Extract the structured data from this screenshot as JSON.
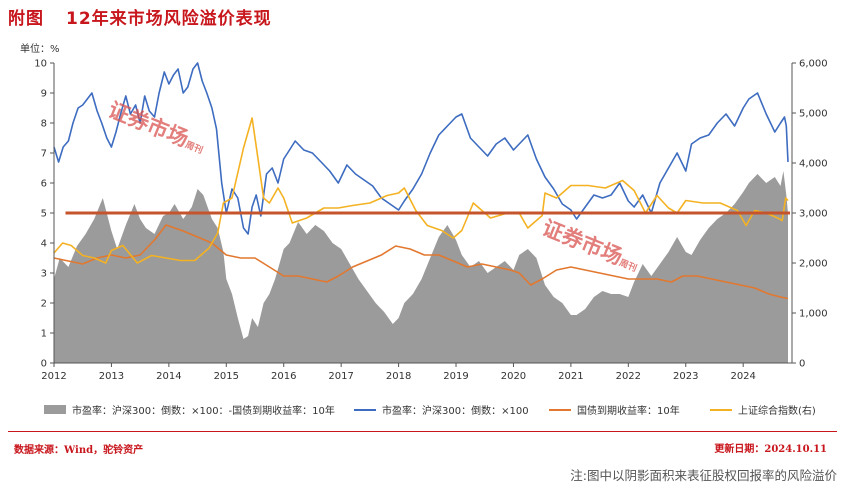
{
  "header": {
    "label": "附图",
    "title": "12年来市场风险溢价表现"
  },
  "footer": {
    "source": "数据来源：Wind，驼铃资产",
    "updated": "更新日期：2024.10.11",
    "note": "注:图中以阴影面积来表征股权回报率的风险溢价"
  },
  "watermark": {
    "text": "证券市场",
    "suffix": "周刊"
  },
  "colors": {
    "area": "#9b9b9b",
    "pe": "#3d6cc0",
    "bond": "#e2782f",
    "sh": "#f4b223",
    "ref": "#c5532b",
    "accent": "#c8161d"
  },
  "chart_data": {
    "type": "line",
    "unit_label": "单位：%",
    "x_ticks": [
      "2012",
      "2013",
      "2014",
      "2015",
      "2016",
      "2017",
      "2018",
      "2019",
      "2020",
      "2021",
      "2022",
      "2023",
      "2024"
    ],
    "xlim": [
      2012,
      2024.85
    ],
    "ylim_left": [
      0,
      10
    ],
    "y_ticks_left": [
      "0",
      "1",
      "2",
      "3",
      "4",
      "5",
      "6",
      "7",
      "8",
      "9",
      "10"
    ],
    "ylim_right": [
      0,
      6000
    ],
    "y_ticks_right": [
      "0",
      "1,000",
      "2,000",
      "3,000",
      "4,000",
      "5,000",
      "6,000"
    ],
    "reference_line": 5.0,
    "series": [
      {
        "name": "市盈率：沪深300：倒数：×100：-国债到期收益率：10年",
        "kind": "area",
        "axis": "left",
        "x": [
          2012.0,
          2012.1,
          2012.25,
          2012.4,
          2012.55,
          2012.7,
          2012.85,
          2013.0,
          2013.1,
          2013.25,
          2013.4,
          2013.5,
          2013.6,
          2013.75,
          2013.9,
          2014.0,
          2014.1,
          2014.25,
          2014.4,
          2014.5,
          2014.6,
          2014.75,
          2014.85,
          2014.95,
          2015.0,
          2015.1,
          2015.2,
          2015.3,
          2015.38,
          2015.45,
          2015.55,
          2015.65,
          2015.75,
          2015.85,
          2016.0,
          2016.1,
          2016.25,
          2016.4,
          2016.55,
          2016.7,
          2016.85,
          2017.0,
          2017.15,
          2017.3,
          2017.45,
          2017.6,
          2017.75,
          2017.9,
          2018.0,
          2018.1,
          2018.25,
          2018.4,
          2018.55,
          2018.7,
          2018.85,
          2019.0,
          2019.1,
          2019.25,
          2019.4,
          2019.55,
          2019.7,
          2019.85,
          2020.0,
          2020.1,
          2020.25,
          2020.4,
          2020.55,
          2020.7,
          2020.85,
          2021.0,
          2021.1,
          2021.25,
          2021.4,
          2021.55,
          2021.7,
          2021.85,
          2022.0,
          2022.1,
          2022.25,
          2022.4,
          2022.55,
          2022.7,
          2022.85,
          2023.0,
          2023.1,
          2023.25,
          2023.4,
          2023.55,
          2023.7,
          2023.85,
          2024.0,
          2024.1,
          2024.25,
          2024.4,
          2024.55,
          2024.65,
          2024.7,
          2024.75,
          2024.78
        ],
        "values": [
          2.8,
          3.5,
          3.2,
          3.9,
          4.3,
          4.8,
          5.5,
          4.4,
          3.8,
          4.6,
          5.3,
          4.8,
          4.5,
          4.3,
          4.9,
          5.0,
          5.3,
          4.8,
          5.2,
          5.8,
          5.6,
          4.8,
          4.5,
          3.7,
          2.8,
          2.3,
          1.5,
          0.8,
          0.9,
          1.5,
          1.2,
          2.0,
          2.3,
          2.8,
          3.8,
          4.0,
          4.7,
          4.3,
          4.6,
          4.4,
          4.0,
          3.8,
          3.3,
          2.8,
          2.4,
          2.0,
          1.7,
          1.3,
          1.5,
          2.0,
          2.3,
          2.8,
          3.5,
          4.2,
          4.6,
          4.1,
          3.6,
          3.2,
          3.4,
          3.0,
          3.2,
          3.4,
          3.1,
          3.6,
          3.8,
          3.5,
          2.6,
          2.2,
          2.0,
          1.6,
          1.6,
          1.8,
          2.2,
          2.4,
          2.3,
          2.3,
          2.2,
          2.7,
          3.3,
          2.9,
          3.3,
          3.7,
          4.2,
          3.7,
          3.6,
          4.1,
          4.5,
          4.8,
          5.0,
          5.3,
          5.7,
          6.0,
          6.3,
          6.0,
          6.2,
          5.9,
          6.4,
          5.6,
          5.0
        ]
      },
      {
        "name": "市盈率：沪深300：倒数：×100",
        "kind": "line",
        "axis": "left",
        "x": [
          2012.0,
          2012.08,
          2012.16,
          2012.25,
          2012.33,
          2012.42,
          2012.5,
          2012.58,
          2012.66,
          2012.75,
          2012.83,
          2012.92,
          2013.0,
          2013.08,
          2013.16,
          2013.25,
          2013.33,
          2013.42,
          2013.5,
          2013.58,
          2013.66,
          2013.75,
          2013.83,
          2013.92,
          2014.0,
          2014.08,
          2014.16,
          2014.25,
          2014.33,
          2014.42,
          2014.5,
          2014.58,
          2014.66,
          2014.75,
          2014.83,
          2014.92,
          2015.0,
          2015.1,
          2015.2,
          2015.3,
          2015.38,
          2015.45,
          2015.52,
          2015.6,
          2015.7,
          2015.8,
          2015.9,
          2016.0,
          2016.1,
          2016.2,
          2016.35,
          2016.5,
          2016.65,
          2016.8,
          2016.95,
          2017.1,
          2017.25,
          2017.4,
          2017.55,
          2017.7,
          2017.85,
          2018.0,
          2018.1,
          2018.25,
          2018.4,
          2018.55,
          2018.7,
          2018.85,
          2019.0,
          2019.1,
          2019.25,
          2019.4,
          2019.55,
          2019.7,
          2019.85,
          2020.0,
          2020.1,
          2020.25,
          2020.4,
          2020.55,
          2020.7,
          2020.85,
          2021.0,
          2021.1,
          2021.25,
          2021.4,
          2021.55,
          2021.7,
          2021.85,
          2022.0,
          2022.1,
          2022.25,
          2022.4,
          2022.55,
          2022.7,
          2022.85,
          2023.0,
          2023.1,
          2023.25,
          2023.4,
          2023.55,
          2023.7,
          2023.85,
          2024.0,
          2024.1,
          2024.25,
          2024.4,
          2024.55,
          2024.65,
          2024.72,
          2024.75,
          2024.78
        ],
        "values": [
          7.2,
          6.7,
          7.2,
          7.4,
          8.0,
          8.5,
          8.6,
          8.8,
          9.0,
          8.4,
          8.0,
          7.5,
          7.2,
          7.7,
          8.3,
          8.9,
          8.3,
          8.6,
          8.0,
          8.9,
          8.4,
          8.2,
          9.0,
          9.7,
          9.3,
          9.6,
          9.8,
          9.0,
          9.2,
          9.8,
          10.0,
          9.4,
          9.0,
          8.5,
          7.8,
          6.0,
          5.0,
          5.8,
          5.5,
          4.5,
          4.3,
          5.2,
          5.6,
          4.9,
          6.3,
          6.5,
          6.0,
          6.8,
          7.1,
          7.4,
          7.1,
          7.0,
          6.7,
          6.4,
          6.0,
          6.6,
          6.3,
          6.1,
          5.9,
          5.5,
          5.3,
          5.1,
          5.4,
          5.8,
          6.3,
          7.0,
          7.6,
          7.9,
          8.2,
          8.3,
          7.5,
          7.2,
          6.9,
          7.3,
          7.5,
          7.1,
          7.3,
          7.6,
          6.8,
          6.2,
          5.8,
          5.3,
          5.1,
          4.8,
          5.2,
          5.6,
          5.5,
          5.6,
          6.0,
          5.4,
          5.2,
          5.6,
          5.0,
          6.0,
          6.5,
          7.0,
          6.4,
          7.3,
          7.5,
          7.6,
          8.0,
          8.3,
          7.9,
          8.5,
          8.8,
          9.0,
          8.3,
          7.7,
          8.0,
          8.2,
          7.9,
          6.7
        ]
      },
      {
        "name": "国债到期收益率：10年",
        "kind": "line",
        "axis": "left",
        "x": [
          2012.0,
          2012.25,
          2012.5,
          2012.75,
          2013.0,
          2013.25,
          2013.5,
          2013.75,
          2013.95,
          2014.1,
          2014.25,
          2014.5,
          2014.75,
          2015.0,
          2015.25,
          2015.5,
          2015.75,
          2016.0,
          2016.25,
          2016.5,
          2016.75,
          2016.95,
          2017.2,
          2017.45,
          2017.7,
          2017.95,
          2018.2,
          2018.45,
          2018.7,
          2018.95,
          2019.2,
          2019.45,
          2019.7,
          2019.95,
          2020.1,
          2020.3,
          2020.5,
          2020.75,
          2021.0,
          2021.25,
          2021.5,
          2021.75,
          2022.0,
          2022.25,
          2022.5,
          2022.75,
          2022.95,
          2023.2,
          2023.45,
          2023.7,
          2023.95,
          2024.2,
          2024.45,
          2024.65,
          2024.78
        ],
        "values": [
          3.5,
          3.4,
          3.3,
          3.5,
          3.6,
          3.5,
          3.6,
          4.1,
          4.6,
          4.5,
          4.4,
          4.2,
          4.0,
          3.6,
          3.5,
          3.5,
          3.2,
          2.9,
          2.9,
          2.8,
          2.7,
          2.9,
          3.2,
          3.4,
          3.6,
          3.9,
          3.8,
          3.6,
          3.6,
          3.4,
          3.2,
          3.3,
          3.2,
          3.1,
          3.0,
          2.6,
          2.8,
          3.1,
          3.2,
          3.1,
          3.0,
          2.9,
          2.8,
          2.8,
          2.8,
          2.7,
          2.9,
          2.9,
          2.8,
          2.7,
          2.6,
          2.5,
          2.3,
          2.2,
          2.15
        ]
      },
      {
        "name": "上证综合指数(右)",
        "kind": "line",
        "axis": "right",
        "x": [
          2012.0,
          2012.15,
          2012.3,
          2012.5,
          2012.7,
          2012.9,
          2013.0,
          2013.2,
          2013.45,
          2013.7,
          2013.95,
          2014.2,
          2014.45,
          2014.7,
          2014.85,
          2014.95,
          2015.1,
          2015.3,
          2015.45,
          2015.55,
          2015.65,
          2015.75,
          2015.9,
          2016.0,
          2016.15,
          2016.4,
          2016.7,
          2016.95,
          2017.2,
          2017.5,
          2017.8,
          2018.0,
          2018.1,
          2018.3,
          2018.5,
          2018.75,
          2018.95,
          2019.1,
          2019.3,
          2019.6,
          2019.9,
          2020.1,
          2020.25,
          2020.5,
          2020.55,
          2020.75,
          2021.0,
          2021.3,
          2021.6,
          2021.9,
          2022.1,
          2022.3,
          2022.5,
          2022.7,
          2022.85,
          2023.0,
          2023.3,
          2023.6,
          2023.9,
          2024.05,
          2024.2,
          2024.4,
          2024.6,
          2024.68,
          2024.74,
          2024.78
        ],
        "values": [
          2200,
          2400,
          2350,
          2150,
          2100,
          2000,
          2250,
          2350,
          2000,
          2150,
          2100,
          2050,
          2050,
          2300,
          2600,
          3200,
          3300,
          4300,
          4900,
          4100,
          3300,
          3200,
          3500,
          3300,
          2800,
          2900,
          3100,
          3100,
          3150,
          3200,
          3350,
          3400,
          3500,
          3050,
          2750,
          2650,
          2500,
          2650,
          3200,
          2900,
          3000,
          3000,
          2700,
          2950,
          3400,
          3300,
          3550,
          3550,
          3500,
          3650,
          3450,
          3000,
          3350,
          3100,
          3000,
          3250,
          3200,
          3200,
          3050,
          2750,
          3050,
          3000,
          2900,
          2850,
          3300,
          3250
        ]
      }
    ]
  }
}
